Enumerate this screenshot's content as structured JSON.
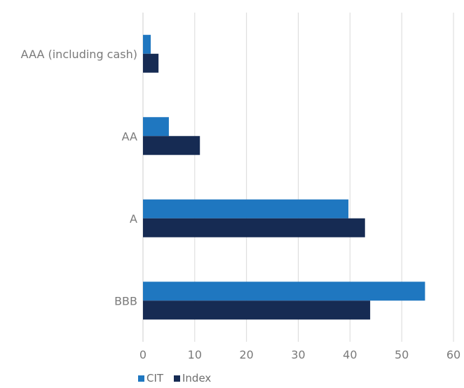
{
  "chart_data": {
    "type": "bar",
    "orientation": "horizontal",
    "categories": [
      "AAA (including cash)",
      "AA",
      "A",
      "BBB"
    ],
    "series": [
      {
        "name": "CIT",
        "values": [
          1.5,
          5.0,
          39.7,
          54.5
        ],
        "color": "#1f77c0"
      },
      {
        "name": "Index",
        "values": [
          3.0,
          11.0,
          42.9,
          43.9
        ],
        "color": "#162b53"
      }
    ],
    "xlim": [
      0,
      60
    ],
    "xticks": [
      0,
      10,
      20,
      30,
      40,
      50,
      60
    ],
    "grid": "vertical",
    "legend_position": "bottom-left"
  }
}
